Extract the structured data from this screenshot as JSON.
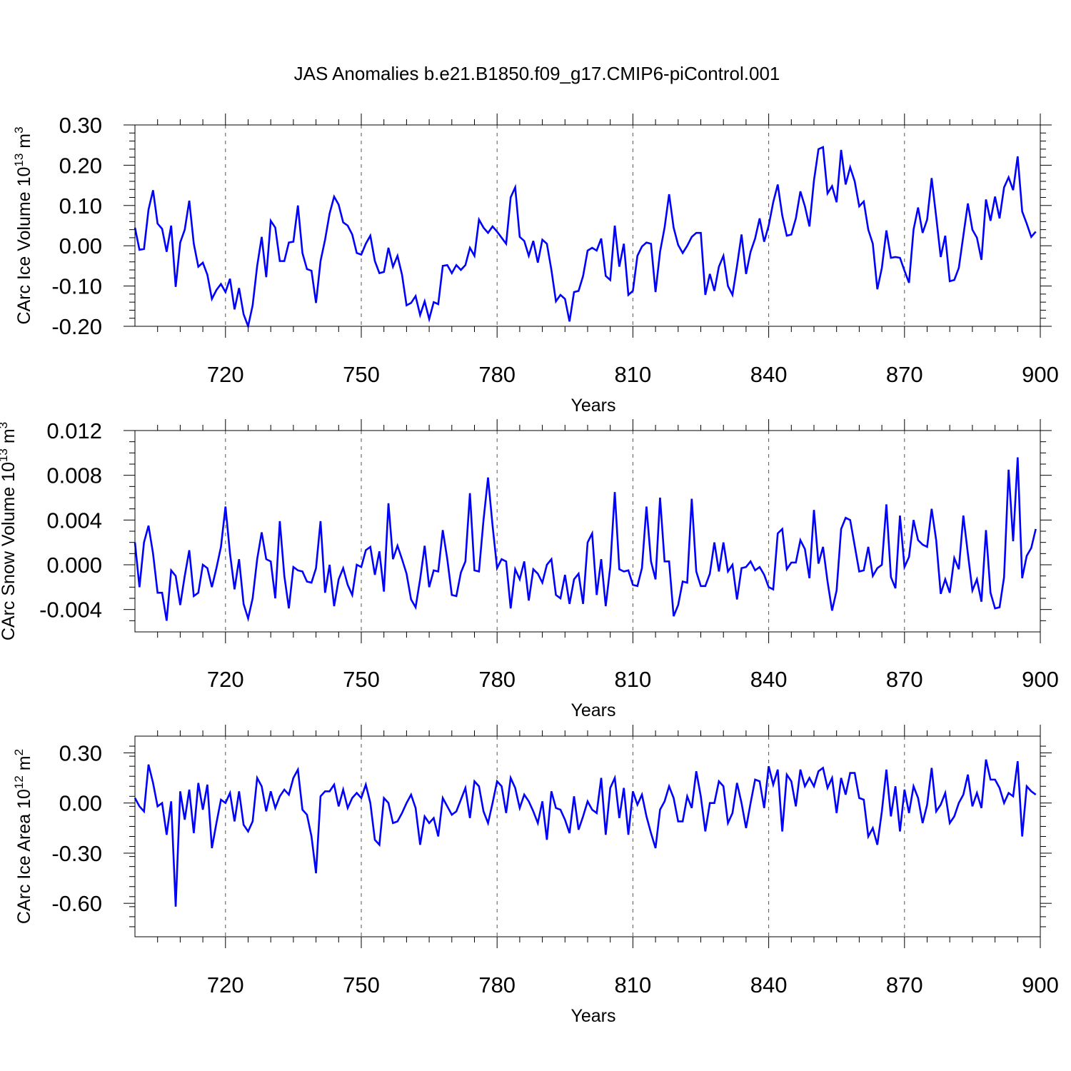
{
  "title": "JAS Anomalies b.e21.B1850.f09_g17.CMIP6-piControl.001",
  "colors": {
    "line": "#0000ff",
    "grid": "#555555",
    "axis": "#000000"
  },
  "chart_data": [
    {
      "type": "line",
      "name": "ice_volume",
      "ylabel": "CArc Ice Volume 10",
      "ylabel_exp": "13",
      "ylabel_unit": " m",
      "ylabel_unit_exp": "3",
      "xlabel": "Years",
      "xlim": [
        700,
        900
      ],
      "ylim": [
        -0.2,
        0.3
      ],
      "xticks": [
        "720",
        "750",
        "780",
        "810",
        "840",
        "870",
        "900"
      ],
      "xtick_values": [
        720,
        750,
        780,
        810,
        840,
        870,
        900
      ],
      "yticks": [
        "0.30",
        "0.20",
        "0.10",
        "0.00",
        "-0.10",
        "-0.20"
      ],
      "ytick_values": [
        0.3,
        0.2,
        0.1,
        0.0,
        -0.1,
        -0.2
      ],
      "yminor_step": 0.02,
      "grid_x": [
        720,
        750,
        780,
        810,
        840,
        870
      ],
      "x_start": 700,
      "x_step": 1,
      "values": [
        0.045,
        -0.01,
        -0.008,
        0.09,
        0.138,
        0.055,
        0.042,
        -0.015,
        0.05,
        -0.102,
        0.008,
        0.04,
        0.112,
        0.005,
        -0.052,
        -0.042,
        -0.072,
        -0.132,
        -0.11,
        -0.095,
        -0.115,
        -0.082,
        -0.158,
        -0.105,
        -0.17,
        -0.2,
        -0.148,
        -0.05,
        0.022,
        -0.078,
        0.062,
        0.045,
        -0.038,
        -0.038,
        0.008,
        0.01,
        0.1,
        -0.018,
        -0.058,
        -0.062,
        -0.142,
        -0.038,
        0.015,
        0.08,
        0.122,
        0.102,
        0.058,
        0.05,
        0.028,
        -0.018,
        -0.022,
        0.005,
        0.025,
        -0.038,
        -0.068,
        -0.065,
        -0.005,
        -0.052,
        -0.025,
        -0.072,
        -0.148,
        -0.142,
        -0.125,
        -0.172,
        -0.138,
        -0.182,
        -0.14,
        -0.145,
        -0.05,
        -0.048,
        -0.068,
        -0.048,
        -0.06,
        -0.048,
        -0.005,
        -0.025,
        0.065,
        0.045,
        0.032,
        0.048,
        0.035,
        0.02,
        0.005,
        0.12,
        0.145,
        0.022,
        0.012,
        -0.025,
        0.012,
        -0.042,
        0.015,
        0.005,
        -0.06,
        -0.138,
        -0.122,
        -0.132,
        -0.188,
        -0.115,
        -0.112,
        -0.075,
        -0.012,
        -0.005,
        -0.012,
        0.018,
        -0.075,
        -0.085,
        0.05,
        -0.052,
        0.005,
        -0.122,
        -0.112,
        -0.025,
        -0.002,
        0.008,
        0.005,
        -0.115,
        -0.015,
        0.045,
        0.128,
        0.045,
        0.002,
        -0.018,
        0.0,
        0.022,
        0.032,
        0.032,
        -0.122,
        -0.07,
        -0.112,
        -0.052,
        -0.025,
        -0.1,
        -0.122,
        -0.05,
        0.028,
        -0.07,
        -0.015,
        0.018,
        0.068,
        0.01,
        0.05,
        0.108,
        0.152,
        0.075,
        0.025,
        0.028,
        0.068,
        0.135,
        0.098,
        0.048,
        0.162,
        0.24,
        0.245,
        0.13,
        0.148,
        0.108,
        0.238,
        0.152,
        0.195,
        0.16,
        0.098,
        0.11,
        0.04,
        0.005,
        -0.108,
        -0.055,
        0.038,
        -0.03,
        -0.028,
        -0.03,
        -0.062,
        -0.092,
        0.04,
        0.095,
        0.032,
        0.065,
        0.168,
        0.072,
        -0.028,
        0.025,
        -0.088,
        -0.085,
        -0.055,
        0.025,
        0.105,
        0.04,
        0.02,
        -0.035,
        0.115,
        0.062,
        0.122,
        0.068,
        0.145,
        0.17,
        0.138,
        0.222,
        0.085,
        0.055,
        0.022,
        0.035
      ]
    },
    {
      "type": "line",
      "name": "snow_volume",
      "ylabel": "CArc Snow Volume 10",
      "ylabel_exp": "13",
      "ylabel_unit": " m",
      "ylabel_unit_exp": "3",
      "xlabel": "Years",
      "xlim": [
        700,
        900
      ],
      "ylim": [
        -0.006,
        0.012
      ],
      "xticks": [
        "720",
        "750",
        "780",
        "810",
        "840",
        "870",
        "900"
      ],
      "xtick_values": [
        720,
        750,
        780,
        810,
        840,
        870,
        900
      ],
      "yticks": [
        "0.012",
        "0.008",
        "0.004",
        "0.000",
        "-0.004"
      ],
      "ytick_values": [
        0.012,
        0.008,
        0.004,
        0.0,
        -0.004
      ],
      "yminor_step": 0.001,
      "grid_x": [
        720,
        750,
        780,
        810,
        840,
        870
      ],
      "x_start": 700,
      "x_step": 1,
      "values": [
        0.002,
        -0.002,
        0.002,
        0.0035,
        0.001,
        -0.0025,
        -0.0025,
        -0.005,
        -0.0005,
        -0.001,
        -0.0036,
        -0.001,
        0.0013,
        -0.0028,
        -0.0025,
        0.0,
        -0.0003,
        -0.002,
        -0.0003,
        0.0016,
        0.0052,
        0.001,
        -0.0022,
        0.0005,
        -0.0035,
        -0.0048,
        -0.003,
        0.0005,
        0.0029,
        0.0005,
        0.0003,
        -0.003,
        0.0039,
        -0.001,
        -0.0039,
        -0.0002,
        -0.0005,
        -0.0006,
        -0.0015,
        -0.0016,
        -0.0003,
        0.0039,
        -0.0025,
        0.0,
        -0.0037,
        -0.0013,
        -0.0003,
        -0.0018,
        -0.0027,
        0.0,
        -0.0002,
        0.0013,
        0.0016,
        -0.0009,
        0.0012,
        -0.0024,
        0.0055,
        0.0005,
        0.0017,
        0.0005,
        -0.0008,
        -0.0031,
        -0.0038,
        -0.0013,
        0.0017,
        -0.002,
        -0.0005,
        -0.0006,
        0.0031,
        0.0005,
        -0.0027,
        -0.0028,
        -0.0007,
        0.0003,
        0.0064,
        -0.0005,
        -0.0006,
        0.004,
        0.0078,
        0.0035,
        -0.0003,
        0.0005,
        0.0003,
        -0.0039,
        -0.0004,
        -0.0013,
        0.0003,
        -0.0032,
        -0.0004,
        -0.0008,
        -0.0016,
        0.0,
        0.0005,
        -0.0027,
        -0.003,
        -0.0009,
        -0.0035,
        -0.0013,
        -0.0008,
        -0.0035,
        0.002,
        0.0028,
        -0.0027,
        0.0005,
        -0.0037,
        -0.0002,
        0.0065,
        -0.0004,
        -0.0006,
        -0.0005,
        -0.0018,
        -0.0019,
        -0.0003,
        0.0052,
        0.0003,
        -0.0013,
        0.006,
        0.0003,
        0.0003,
        -0.0046,
        -0.0036,
        -0.0015,
        -0.0016,
        0.0059,
        -0.0006,
        -0.0019,
        -0.0019,
        -0.0008,
        0.002,
        -0.0006,
        0.002,
        -0.0006,
        0.0,
        -0.0031,
        -0.0003,
        -0.0002,
        0.0003,
        -0.0005,
        -0.0002,
        -0.0009,
        -0.002,
        -0.0022,
        0.0028,
        0.0032,
        -0.0004,
        0.0002,
        0.0002,
        0.0022,
        0.0014,
        -0.0012,
        0.0049,
        0.0001,
        0.0016,
        -0.0015,
        -0.0041,
        -0.0023,
        0.0032,
        0.0042,
        0.004,
        0.0017,
        -0.0006,
        -0.0005,
        0.0016,
        -0.001,
        -0.0003,
        0.0,
        0.0054,
        -0.0011,
        -0.0021,
        0.0044,
        -0.0002,
        0.0007,
        0.004,
        0.0022,
        0.0018,
        0.0016,
        0.005,
        0.0022,
        -0.0026,
        -0.0013,
        -0.0025,
        0.0006,
        -0.0004,
        0.0044,
        0.001,
        -0.0023,
        -0.0013,
        -0.0033,
        0.0031,
        -0.0025,
        -0.0039,
        -0.0038,
        -0.0011,
        0.0085,
        0.0021,
        0.0096,
        -0.0012,
        0.0008,
        0.0015,
        0.0032
      ]
    },
    {
      "type": "line",
      "name": "ice_area",
      "ylabel": "CArc Ice Area 10",
      "ylabel_exp": "12",
      "ylabel_unit": " m",
      "ylabel_unit_exp": "2",
      "xlabel": "Years",
      "xlim": [
        700,
        900
      ],
      "ylim": [
        -0.8,
        0.4
      ],
      "xticks": [
        "720",
        "750",
        "780",
        "810",
        "840",
        "870",
        "900"
      ],
      "xtick_values": [
        720,
        750,
        780,
        810,
        840,
        870,
        900
      ],
      "yticks": [
        "0.30",
        "0.00",
        "-0.30",
        "-0.60"
      ],
      "ytick_values": [
        0.3,
        0.0,
        -0.3,
        -0.6
      ],
      "yminor_step": 0.06,
      "grid_x": [
        720,
        750,
        780,
        810,
        840,
        870
      ],
      "x_start": 700,
      "x_step": 1,
      "values": [
        0.03,
        -0.02,
        -0.05,
        0.23,
        0.12,
        -0.02,
        0.0,
        -0.19,
        0.01,
        -0.62,
        0.07,
        -0.1,
        0.08,
        -0.18,
        0.12,
        -0.04,
        0.11,
        -0.27,
        -0.12,
        0.02,
        0.0,
        0.06,
        -0.11,
        0.07,
        -0.13,
        -0.17,
        -0.11,
        0.15,
        0.1,
        -0.05,
        0.07,
        -0.03,
        0.04,
        0.08,
        0.05,
        0.15,
        0.2,
        -0.04,
        -0.07,
        -0.2,
        -0.42,
        0.04,
        0.07,
        0.07,
        0.11,
        -0.02,
        0.08,
        -0.03,
        0.03,
        0.06,
        0.03,
        0.11,
        0.0,
        -0.22,
        -0.25,
        0.03,
        0.0,
        -0.12,
        -0.11,
        -0.06,
        0.0,
        0.05,
        -0.03,
        -0.25,
        -0.08,
        -0.12,
        -0.09,
        -0.2,
        0.03,
        -0.02,
        -0.07,
        -0.05,
        0.02,
        0.09,
        -0.09,
        0.13,
        0.1,
        -0.05,
        -0.12,
        0.0,
        0.13,
        0.1,
        -0.06,
        0.15,
        0.09,
        -0.03,
        0.05,
        0.01,
        -0.05,
        -0.12,
        0.01,
        -0.22,
        0.07,
        -0.03,
        -0.04,
        -0.1,
        -0.18,
        0.04,
        -0.16,
        -0.08,
        0.01,
        -0.04,
        -0.06,
        0.15,
        -0.19,
        0.09,
        0.15,
        -0.09,
        0.09,
        -0.19,
        0.07,
        -0.01,
        0.05,
        -0.08,
        -0.18,
        -0.27,
        -0.04,
        0.01,
        0.1,
        0.03,
        -0.11,
        -0.11,
        0.04,
        -0.03,
        0.19,
        0.04,
        -0.17,
        0.0,
        0.0,
        0.13,
        0.1,
        -0.12,
        -0.06,
        0.12,
        0.0,
        -0.15,
        0.0,
        0.14,
        0.13,
        -0.03,
        0.22,
        0.11,
        0.2,
        -0.17,
        0.17,
        0.13,
        -0.02,
        0.2,
        0.1,
        0.15,
        0.1,
        0.19,
        0.21,
        0.09,
        0.15,
        -0.06,
        0.15,
        0.05,
        0.18,
        0.18,
        0.03,
        0.02,
        -0.2,
        -0.15,
        -0.25,
        -0.05,
        0.2,
        -0.08,
        0.1,
        -0.17,
        0.08,
        -0.06,
        0.1,
        0.03,
        -0.12,
        -0.01,
        0.21,
        -0.05,
        -0.01,
        0.06,
        -0.12,
        -0.08,
        0.0,
        0.05,
        0.17,
        -0.02,
        0.06,
        -0.03,
        0.26,
        0.14,
        0.14,
        0.09,
        0.0,
        0.06,
        0.04,
        0.25,
        -0.2,
        0.1,
        0.07,
        0.05
      ]
    }
  ]
}
